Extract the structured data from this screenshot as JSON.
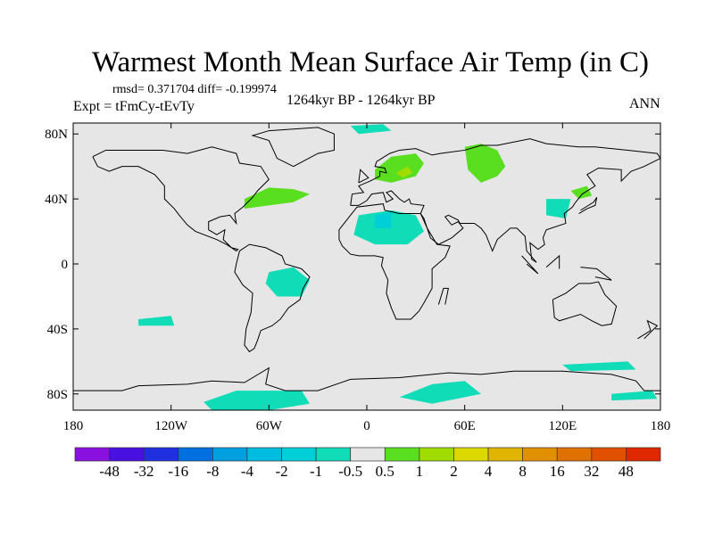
{
  "title": "Warmest Month Mean Surface Air Temp (in C)",
  "stats": "rmsd= 0.371704 diff= -0.199974",
  "experiment": "Expt = tFmCy-tEvTy",
  "center_label": "1264kyr BP - 1264kyr BP",
  "season": "ANN",
  "chart_data": {
    "type": "heatmap",
    "projection": "cylindrical-equidistant",
    "lon_range": [
      -180,
      180
    ],
    "lat_range": [
      -90,
      90
    ],
    "lat_ticks": [
      {
        "v": 80,
        "label": "80N"
      },
      {
        "v": 40,
        "label": "40N"
      },
      {
        "v": 0,
        "label": "0"
      },
      {
        "v": -40,
        "label": "40S"
      },
      {
        "v": -80,
        "label": "80S"
      }
    ],
    "lon_ticks": [
      {
        "v": -180,
        "label": "180"
      },
      {
        "v": -120,
        "label": "120W"
      },
      {
        "v": -60,
        "label": "60W"
      },
      {
        "v": 0,
        "label": "0"
      },
      {
        "v": 60,
        "label": "60E"
      },
      {
        "v": 120,
        "label": "120E"
      },
      {
        "v": 180,
        "label": "180"
      }
    ],
    "colorbar": {
      "labels": [
        "-48",
        "-32",
        "-16",
        "-8",
        "-4",
        "-2",
        "-1",
        "-0.5",
        "0.5",
        "1",
        "2",
        "4",
        "8",
        "16",
        "32",
        "48"
      ],
      "colors": [
        "#8a10e0",
        "#4a10e0",
        "#2030e0",
        "#0070e0",
        "#00a0e0",
        "#00bce0",
        "#00cfd8",
        "#10dcb8",
        "#e6e6e6",
        "#5ade20",
        "#a0dc00",
        "#dcd800",
        "#e0b400",
        "#e09000",
        "#e07000",
        "#e05000",
        "#e02800"
      ]
    },
    "anomaly_regions": [
      {
        "level": "1",
        "color": "#5ade20",
        "poly": [
          [
            -75,
            40
          ],
          [
            -60,
            47
          ],
          [
            -45,
            46
          ],
          [
            -35,
            43
          ],
          [
            -45,
            38
          ],
          [
            -60,
            36
          ],
          [
            -75,
            34
          ]
        ]
      },
      {
        "level": "1",
        "color": "#5ade20",
        "poly": [
          [
            5,
            58
          ],
          [
            15,
            66
          ],
          [
            30,
            68
          ],
          [
            35,
            62
          ],
          [
            30,
            54
          ],
          [
            15,
            50
          ],
          [
            5,
            52
          ]
        ]
      },
      {
        "level": "1",
        "color": "#5ade20",
        "poly": [
          [
            60,
            72
          ],
          [
            70,
            74
          ],
          [
            80,
            70
          ],
          [
            85,
            60
          ],
          [
            80,
            54
          ],
          [
            70,
            50
          ],
          [
            62,
            58
          ]
        ]
      },
      {
        "level": "1",
        "color": "#5ade20",
        "poly": [
          [
            125,
            45
          ],
          [
            135,
            48
          ],
          [
            138,
            42
          ],
          [
            130,
            40
          ]
        ]
      },
      {
        "level": "2",
        "color": "#a0dc00",
        "poly": [
          [
            18,
            56
          ],
          [
            25,
            60
          ],
          [
            28,
            56
          ],
          [
            22,
            53
          ]
        ]
      },
      {
        "level": "-0.5",
        "color": "#10dcb8",
        "poly": [
          [
            -5,
            30
          ],
          [
            15,
            33
          ],
          [
            30,
            30
          ],
          [
            35,
            20
          ],
          [
            25,
            12
          ],
          [
            5,
            12
          ],
          [
            -8,
            18
          ]
        ]
      },
      {
        "level": "-0.5",
        "color": "#10dcb8",
        "poly": [
          [
            -60,
            -5
          ],
          [
            -45,
            -2
          ],
          [
            -35,
            -10
          ],
          [
            -40,
            -20
          ],
          [
            -55,
            -20
          ],
          [
            -62,
            -12
          ]
        ]
      },
      {
        "level": "-0.5",
        "color": "#10dcb8",
        "poly": [
          [
            -100,
            -85
          ],
          [
            -80,
            -78
          ],
          [
            -40,
            -78
          ],
          [
            -35,
            -86
          ],
          [
            -60,
            -90
          ],
          [
            -95,
            -90
          ]
        ]
      },
      {
        "level": "-0.5",
        "color": "#10dcb8",
        "poly": [
          [
            20,
            -82
          ],
          [
            40,
            -74
          ],
          [
            60,
            -72
          ],
          [
            70,
            -80
          ],
          [
            40,
            -86
          ]
        ]
      },
      {
        "level": "-0.5",
        "color": "#10dcb8",
        "poly": [
          [
            -140,
            -34
          ],
          [
            -120,
            -32
          ],
          [
            -118,
            -38
          ],
          [
            -140,
            -38
          ]
        ]
      },
      {
        "level": "-0.5",
        "color": "#10dcb8",
        "poly": [
          [
            -10,
            85
          ],
          [
            10,
            86
          ],
          [
            15,
            82
          ],
          [
            -5,
            80
          ]
        ]
      },
      {
        "level": "-0.5",
        "color": "#10dcb8",
        "poly": [
          [
            110,
            40
          ],
          [
            125,
            40
          ],
          [
            122,
            28
          ],
          [
            110,
            30
          ]
        ]
      },
      {
        "level": "-0.5",
        "color": "#10dcb8",
        "poly": [
          [
            120,
            -62
          ],
          [
            160,
            -60
          ],
          [
            165,
            -65
          ],
          [
            125,
            -66
          ]
        ]
      },
      {
        "level": "-0.5",
        "color": "#10dcb8",
        "poly": [
          [
            150,
            -80
          ],
          [
            175,
            -78
          ],
          [
            178,
            -83
          ],
          [
            150,
            -84
          ]
        ]
      },
      {
        "level": "-1",
        "color": "#00cfd8",
        "poly": [
          [
            5,
            30
          ],
          [
            15,
            32
          ],
          [
            15,
            22
          ],
          [
            5,
            22
          ]
        ]
      }
    ]
  }
}
